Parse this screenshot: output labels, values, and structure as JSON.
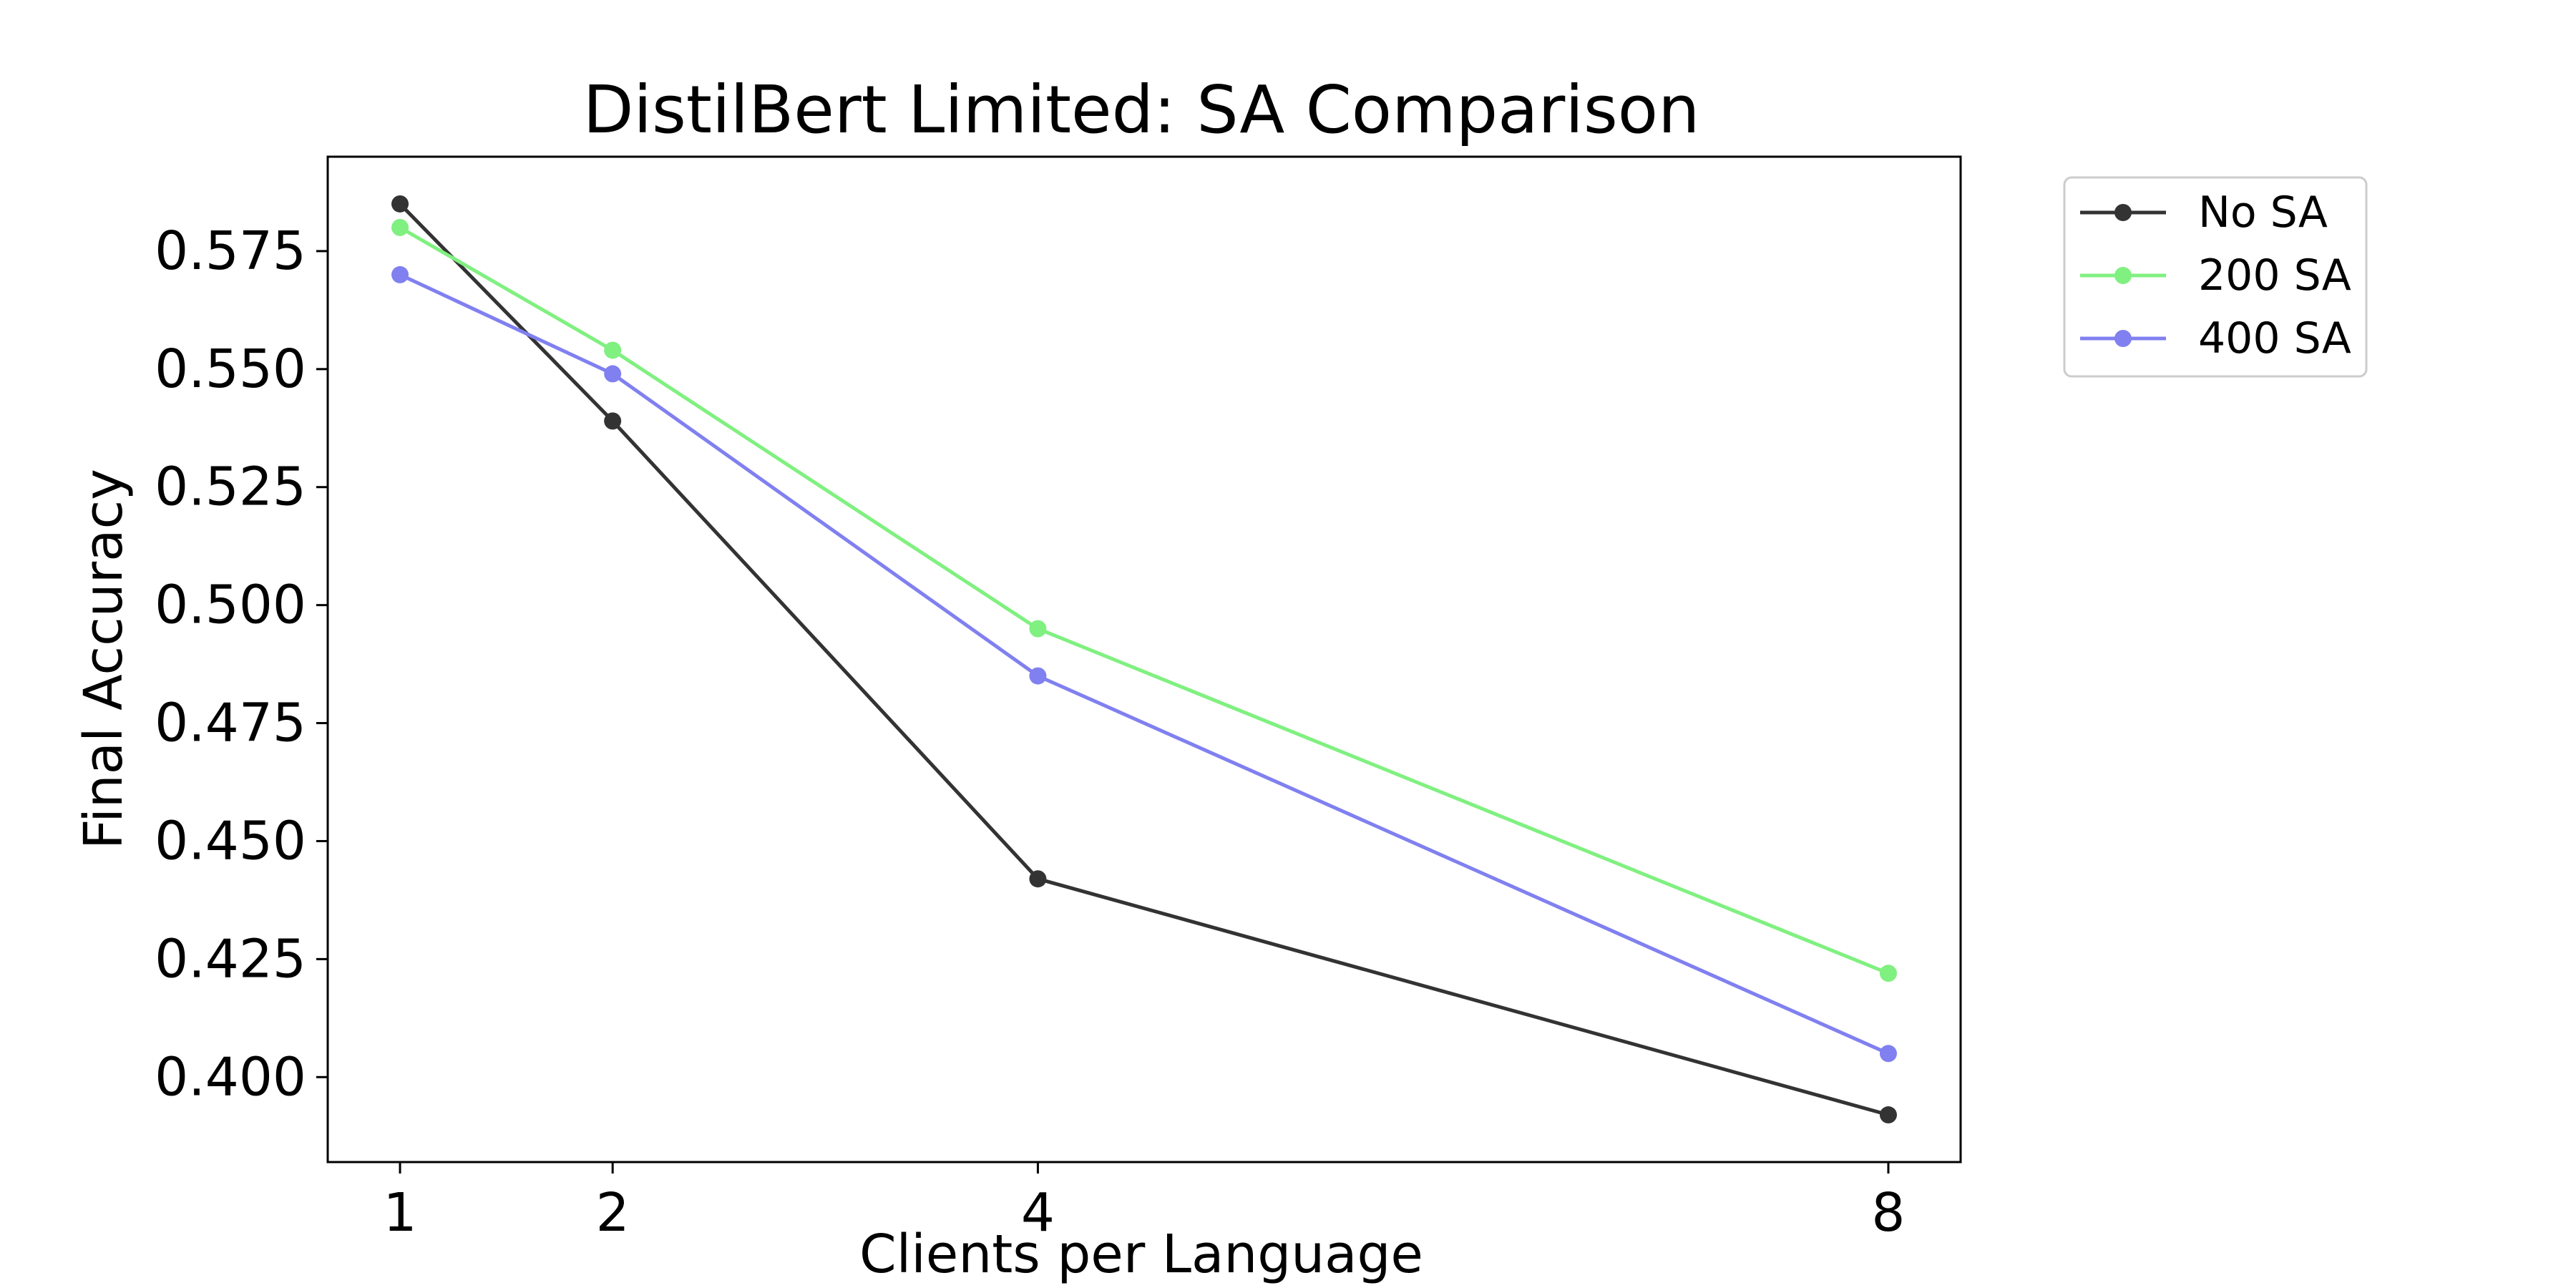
{
  "chart_data": {
    "type": "line",
    "title": "DistilBert Limited: SA Comparison",
    "xlabel": "Clients per Language",
    "ylabel": "Final Accuracy",
    "x": [
      1,
      2,
      4,
      8
    ],
    "x_tick_labels": [
      "1",
      "2",
      "4",
      "8"
    ],
    "y_ticks": [
      0.4,
      0.425,
      0.45,
      0.475,
      0.5,
      0.525,
      0.55,
      0.575
    ],
    "y_tick_labels": [
      "0.400",
      "0.425",
      "0.450",
      "0.475",
      "0.500",
      "0.525",
      "0.550",
      "0.575"
    ],
    "xlim": [
      0.66,
      8.34
    ],
    "ylim": [
      0.382,
      0.595
    ],
    "grid": false,
    "legend_position": "outside-top-right",
    "series": [
      {
        "name": "No SA",
        "color": "#333333",
        "marker": "circle",
        "values": [
          0.585,
          0.539,
          0.442,
          0.392
        ]
      },
      {
        "name": "200 SA",
        "color": "#80f080",
        "marker": "circle",
        "values": [
          0.58,
          0.554,
          0.495,
          0.422
        ]
      },
      {
        "name": "400 SA",
        "color": "#8080f0",
        "marker": "circle",
        "values": [
          0.57,
          0.549,
          0.485,
          0.405
        ]
      }
    ]
  }
}
